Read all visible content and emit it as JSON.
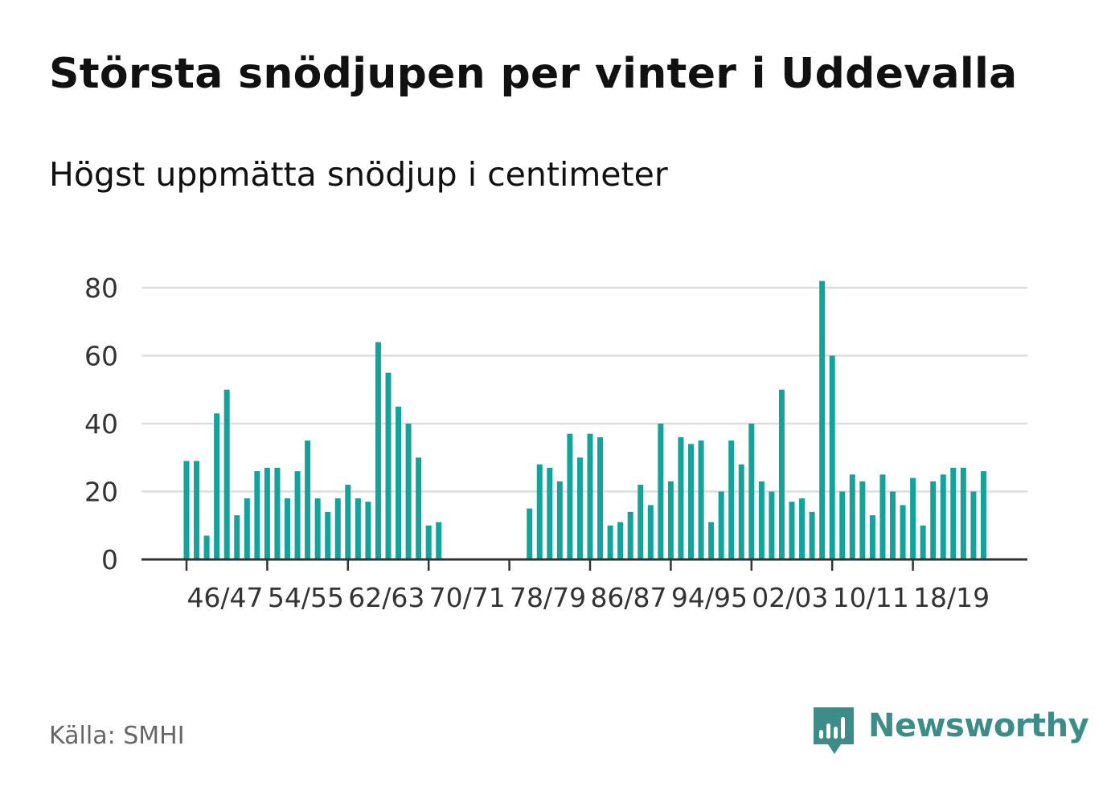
{
  "title": "Största snödjupen per vinter i Uddevalla",
  "subtitle": "Högst uppmätta snödjup i centimeter",
  "source": "Källa: SMHI",
  "brand": {
    "name": "Newsworthy",
    "icon": "newsworthy-logo-icon",
    "color": "#3d8c88"
  },
  "colors": {
    "bar": "#14a39a",
    "grid": "#dddddd",
    "axis": "#333333",
    "text": "#111111",
    "source": "#666666"
  },
  "chart_data": {
    "type": "bar",
    "ylim": [
      0,
      80
    ],
    "y_ticks": [
      0,
      20,
      40,
      60,
      80
    ],
    "x_tick_labels": [
      "46/47",
      "54/55",
      "62/63",
      "70/71",
      "78/79",
      "86/87",
      "94/95",
      "02/03",
      "10/11",
      "18/19"
    ],
    "x_tick_start": 1946,
    "x_tick_step": 8,
    "grid": true,
    "legend": "none",
    "series": [
      {
        "categories": [
          "46/47",
          "47/48",
          "48/49",
          "49/50",
          "50/51",
          "51/52",
          "52/53",
          "53/54",
          "54/55",
          "55/56",
          "56/57",
          "57/58",
          "58/59",
          "59/60",
          "60/61",
          "61/62",
          "62/63",
          "63/64",
          "64/65",
          "65/66",
          "66/67",
          "67/68",
          "68/69",
          "69/70",
          "70/71",
          "71/72",
          "72/73",
          "73/74",
          "74/75",
          "75/76",
          "76/77",
          "77/78",
          "78/79",
          "79/80",
          "80/81",
          "81/82",
          "82/83",
          "83/84",
          "84/85",
          "85/86",
          "86/87",
          "87/88",
          "88/89",
          "89/90",
          "90/91",
          "91/92",
          "92/93",
          "93/94",
          "94/95",
          "95/96",
          "96/97",
          "97/98",
          "98/99",
          "99/00",
          "00/01",
          "01/02",
          "02/03",
          "03/04",
          "04/05",
          "05/06",
          "06/07",
          "07/08",
          "08/09",
          "09/10",
          "10/11",
          "11/12",
          "12/13",
          "13/14",
          "14/15",
          "15/16",
          "16/17",
          "17/18",
          "18/19",
          "19/20",
          "20/21",
          "21/22",
          "22/23",
          "23/24",
          "24/25",
          "25/26"
        ],
        "values": [
          29,
          29,
          7,
          43,
          50,
          13,
          18,
          26,
          27,
          27,
          18,
          26,
          35,
          18,
          14,
          18,
          22,
          18,
          17,
          64,
          55,
          45,
          40,
          30,
          10,
          11,
          null,
          null,
          null,
          null,
          null,
          null,
          null,
          null,
          15,
          28,
          27,
          23,
          37,
          30,
          37,
          36,
          10,
          11,
          14,
          22,
          16,
          40,
          23,
          36,
          34,
          35,
          11,
          20,
          35,
          28,
          40,
          23,
          20,
          50,
          17,
          18,
          14,
          82,
          60,
          20,
          25,
          23,
          13,
          25,
          20,
          16,
          24,
          10,
          23,
          25,
          27,
          27,
          20,
          26
        ]
      }
    ]
  }
}
